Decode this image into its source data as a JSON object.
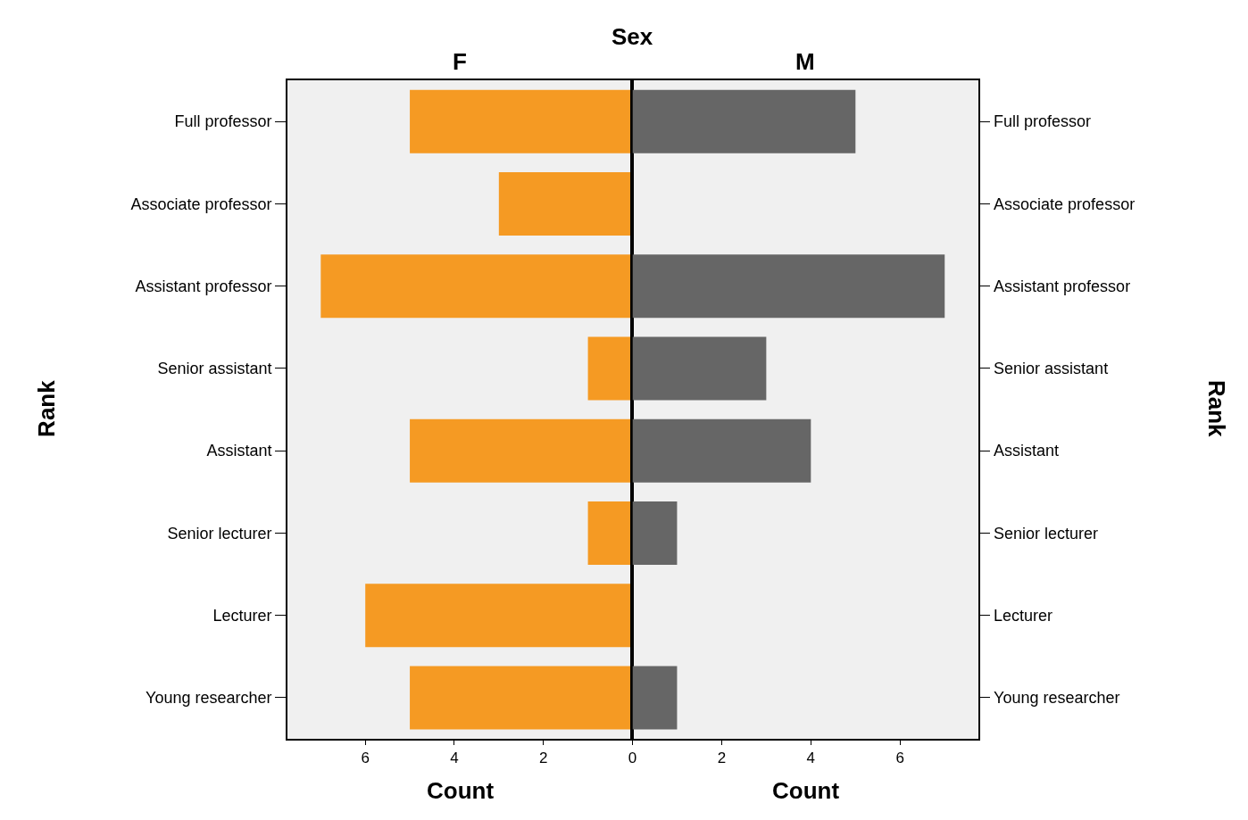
{
  "chart_data": [
    {
      "type": "bar",
      "orientation": "horizontal",
      "title": "Sex",
      "subtitle": "F",
      "xlabel": "Count",
      "ylabel": "Rank",
      "categories": [
        "Full professor",
        "Associate professor",
        "Assistant professor",
        "Senior assistant",
        "Assistant",
        "Senior lecturer",
        "Lecturer",
        "Young researcher"
      ],
      "values": [
        5,
        3,
        7,
        1,
        5,
        1,
        6,
        5
      ],
      "color": "#f59a23",
      "xlim": [
        7.75,
        0
      ],
      "xticks": [
        6,
        4,
        2
      ],
      "grid": false
    },
    {
      "type": "bar",
      "orientation": "horizontal",
      "subtitle": "M",
      "xlabel": "Count",
      "ylabel": "Rank",
      "categories": [
        "Full professor",
        "Associate professor",
        "Assistant professor",
        "Senior assistant",
        "Assistant",
        "Senior lecturer",
        "Lecturer",
        "Young researcher"
      ],
      "values": [
        5,
        0,
        7,
        3,
        4,
        1,
        0,
        1
      ],
      "color": "#666666",
      "xlim": [
        0,
        7.75
      ],
      "xticks": [
        0,
        2,
        4,
        6
      ],
      "grid": false
    }
  ]
}
